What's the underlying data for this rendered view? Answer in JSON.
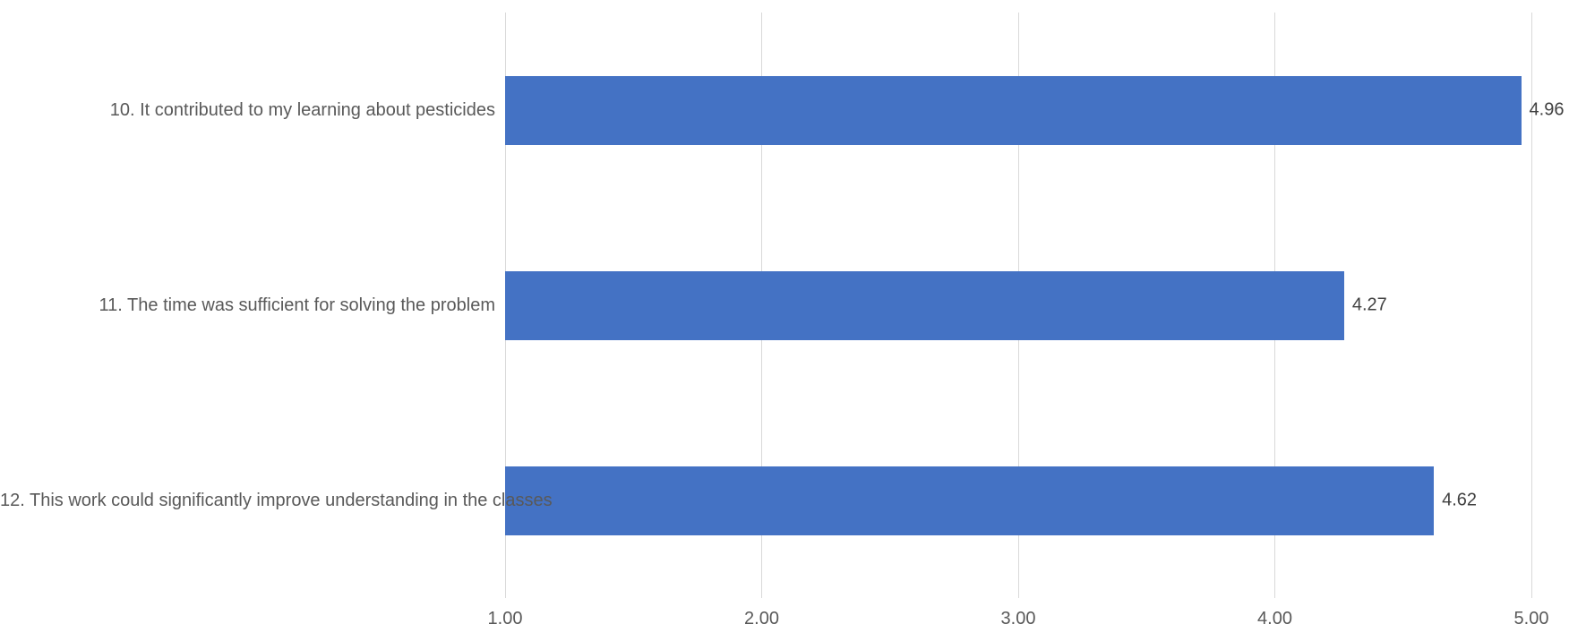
{
  "chart_data": {
    "type": "bar",
    "orientation": "horizontal",
    "title": "",
    "xlabel": "",
    "ylabel": "",
    "legend": "none",
    "grid": "vertical-major",
    "categories": [
      "10. It contributed to my learning about pesticides",
      "11. The time was sufficient for solving the problem",
      "12. This work could significantly improve understanding in the classes"
    ],
    "values": [
      4.96,
      4.27,
      4.62
    ],
    "value_labels": [
      "4.96",
      "4.27",
      "4.62"
    ],
    "x_ticks": [
      "1.00",
      "2.00",
      "3.00",
      "4.00",
      "5.00"
    ],
    "xlim": [
      1.0,
      5.0
    ],
    "bar_color": "#4472C4",
    "gridline_color": "#D9D9D9",
    "axis_text_color": "#595959",
    "value_label_color": "#404040"
  }
}
